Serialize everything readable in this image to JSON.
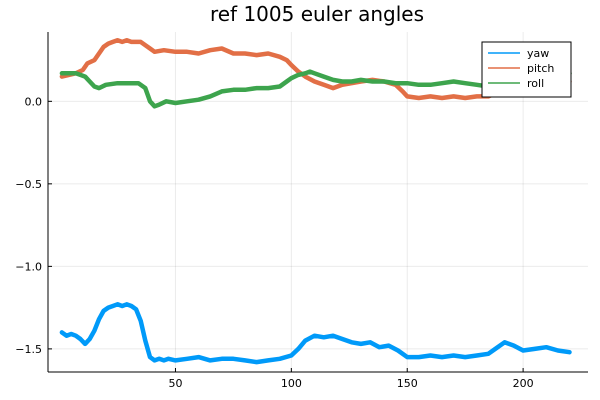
{
  "chart_data": {
    "type": "line",
    "title": "ref 1005 euler angles",
    "xlabel": "",
    "ylabel": "",
    "xlim": [
      -5,
      228
    ],
    "ylim": [
      -1.64,
      0.42
    ],
    "x_ticks": [
      50,
      100,
      150,
      200
    ],
    "x_tick_labels": [
      "50",
      "100",
      "150",
      "200"
    ],
    "y_ticks": [
      0.0,
      -0.5,
      -1.0,
      -1.5
    ],
    "y_tick_labels": [
      "0.0",
      "−0.5",
      "−1.0",
      "−1.5"
    ],
    "grid": true,
    "legend_position": "top-right",
    "series": [
      {
        "name": "yaw",
        "color": "#009af9",
        "x": [
          1,
          3,
          5,
          7,
          9,
          11,
          13,
          15,
          17,
          19,
          21,
          23,
          25,
          27,
          29,
          31,
          33,
          35,
          37,
          39,
          41,
          43,
          45,
          47,
          50,
          55,
          60,
          65,
          70,
          75,
          80,
          85,
          90,
          95,
          100,
          103,
          106,
          110,
          114,
          118,
          122,
          126,
          130,
          134,
          138,
          142,
          146,
          150,
          155,
          160,
          165,
          170,
          175,
          180,
          185,
          188,
          192,
          196,
          200,
          205,
          210,
          215,
          220
        ],
        "y": [
          -1.4,
          -1.42,
          -1.41,
          -1.42,
          -1.44,
          -1.47,
          -1.44,
          -1.39,
          -1.32,
          -1.27,
          -1.25,
          -1.24,
          -1.23,
          -1.24,
          -1.23,
          -1.24,
          -1.26,
          -1.33,
          -1.45,
          -1.55,
          -1.57,
          -1.56,
          -1.57,
          -1.56,
          -1.57,
          -1.56,
          -1.55,
          -1.57,
          -1.56,
          -1.56,
          -1.57,
          -1.58,
          -1.57,
          -1.56,
          -1.54,
          -1.5,
          -1.45,
          -1.42,
          -1.43,
          -1.42,
          -1.44,
          -1.46,
          -1.47,
          -1.46,
          -1.49,
          -1.48,
          -1.51,
          -1.55,
          -1.55,
          -1.54,
          -1.55,
          -1.54,
          -1.55,
          -1.54,
          -1.53,
          -1.5,
          -1.46,
          -1.48,
          -1.51,
          -1.5,
          -1.49,
          -1.51,
          -1.52
        ]
      },
      {
        "name": "pitch",
        "color": "#e26f46",
        "x": [
          1,
          4,
          7,
          10,
          12,
          15,
          17,
          19,
          21,
          23,
          25,
          27,
          29,
          31,
          33,
          35,
          37,
          39,
          41,
          45,
          50,
          55,
          60,
          65,
          70,
          75,
          80,
          85,
          90,
          95,
          98,
          100,
          103,
          106,
          110,
          114,
          118,
          122,
          126,
          130,
          135,
          140,
          145,
          148,
          150,
          155,
          160,
          165,
          170,
          175,
          180,
          185,
          190,
          195,
          200,
          205,
          210,
          215,
          220
        ],
        "y": [
          0.15,
          0.16,
          0.17,
          0.19,
          0.23,
          0.25,
          0.29,
          0.33,
          0.35,
          0.36,
          0.37,
          0.36,
          0.37,
          0.36,
          0.36,
          0.36,
          0.34,
          0.32,
          0.3,
          0.31,
          0.3,
          0.3,
          0.29,
          0.31,
          0.32,
          0.29,
          0.29,
          0.28,
          0.29,
          0.27,
          0.25,
          0.22,
          0.18,
          0.15,
          0.12,
          0.1,
          0.08,
          0.1,
          0.11,
          0.12,
          0.13,
          0.12,
          0.1,
          0.06,
          0.03,
          0.02,
          0.03,
          0.02,
          0.03,
          0.02,
          0.03,
          0.03,
          0.06,
          0.07,
          0.08,
          0.09,
          0.1,
          0.12,
          0.12
        ]
      },
      {
        "name": "roll",
        "color": "#3da44d",
        "x": [
          1,
          3,
          5,
          7,
          9,
          11,
          13,
          15,
          17,
          20,
          25,
          28,
          31,
          34,
          37,
          39,
          41,
          43,
          46,
          50,
          55,
          60,
          65,
          70,
          75,
          80,
          85,
          90,
          95,
          98,
          100,
          103,
          106,
          108,
          110,
          114,
          118,
          122,
          126,
          130,
          135,
          140,
          145,
          150,
          155,
          160,
          165,
          170,
          175,
          180,
          185,
          190,
          195,
          200,
          205,
          210,
          215,
          220
        ],
        "y": [
          0.17,
          0.17,
          0.17,
          0.17,
          0.16,
          0.15,
          0.12,
          0.09,
          0.08,
          0.1,
          0.11,
          0.11,
          0.11,
          0.11,
          0.08,
          0.0,
          -0.03,
          -0.02,
          0.0,
          -0.01,
          0.0,
          0.01,
          0.03,
          0.06,
          0.07,
          0.07,
          0.08,
          0.08,
          0.09,
          0.12,
          0.14,
          0.16,
          0.17,
          0.18,
          0.17,
          0.15,
          0.13,
          0.12,
          0.12,
          0.13,
          0.12,
          0.12,
          0.11,
          0.11,
          0.1,
          0.1,
          0.11,
          0.12,
          0.11,
          0.1,
          0.09,
          0.11,
          0.12,
          0.14,
          0.16,
          0.15,
          0.16,
          0.17
        ]
      }
    ]
  }
}
